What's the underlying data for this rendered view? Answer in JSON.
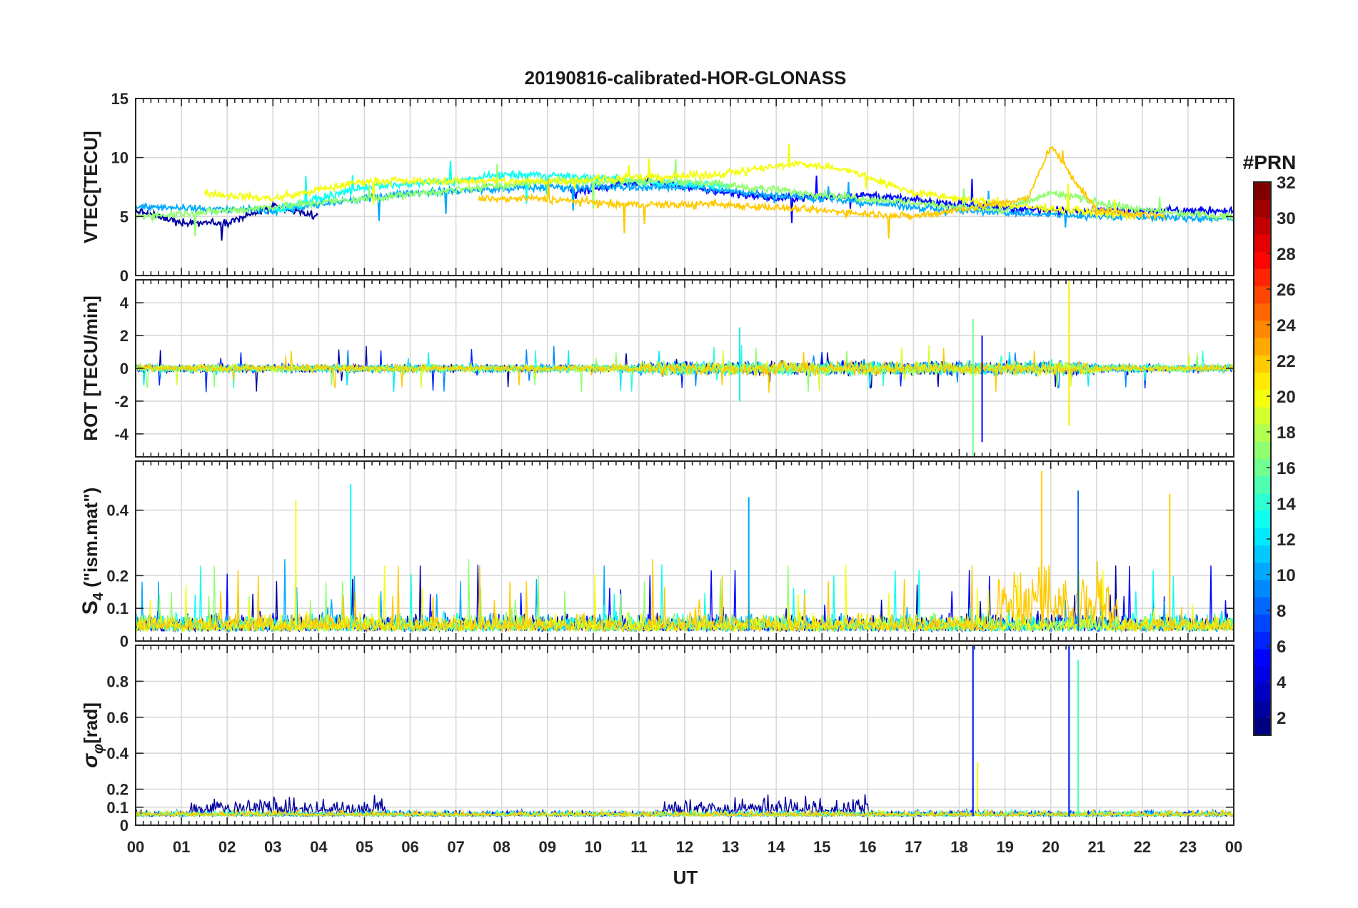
{
  "chart_data": {
    "type": "line",
    "title": "20190816-calibrated-HOR-GLONASS",
    "xlabel": "UT",
    "x_tick_labels": [
      "00",
      "01",
      "02",
      "03",
      "04",
      "05",
      "06",
      "07",
      "08",
      "09",
      "10",
      "11",
      "12",
      "13",
      "14",
      "15",
      "16",
      "17",
      "18",
      "19",
      "20",
      "21",
      "22",
      "23",
      "00"
    ],
    "xlim_hours": [
      0,
      24
    ],
    "grid": true,
    "colorbar": {
      "label": "#PRN",
      "range": [
        1,
        32
      ],
      "ticks": [
        "2",
        "4",
        "6",
        "8",
        "10",
        "12",
        "14",
        "16",
        "18",
        "20",
        "22",
        "24",
        "26",
        "28",
        "30",
        "32"
      ],
      "colormap": "jet",
      "placement": "right"
    },
    "panels": [
      {
        "name": "vtec",
        "ylabel": "VTEC[TECU]",
        "ylim": [
          0,
          15
        ],
        "yticks": [
          0,
          5,
          10,
          15
        ],
        "ytick_labels": [
          "0",
          "5",
          "10",
          "15"
        ],
        "series_summary": [
          {
            "prn": 2,
            "x_hours": [
              0.0,
              1.0,
              2.0,
              3.0,
              4.0
            ],
            "y": [
              5.5,
              4.5,
              4.5,
              5.8,
              5.0
            ]
          },
          {
            "prn": 5,
            "x_hours": [
              9.5,
              11.0,
              12.0,
              13.0,
              14.0,
              16.0,
              18.0,
              20.0,
              22.0,
              24.0
            ],
            "y": [
              7.0,
              8.0,
              7.5,
              7.0,
              6.5,
              6.8,
              6.0,
              5.5,
              5.5,
              5.5
            ]
          },
          {
            "prn": 10,
            "x_hours": [
              0.0,
              3.0,
              6.0,
              9.0,
              12.0,
              15.0,
              18.0,
              21.0,
              24.0
            ],
            "y": [
              5.8,
              5.5,
              7.0,
              7.5,
              7.5,
              6.5,
              5.5,
              5.0,
              4.8
            ]
          },
          {
            "prn": 13,
            "x_hours": [
              3.0,
              5.0,
              7.0,
              8.0,
              9.0,
              11.0,
              13.0
            ],
            "y": [
              5.5,
              7.5,
              8.0,
              8.5,
              8.5,
              8.0,
              7.5
            ]
          },
          {
            "prn": 17,
            "x_hours": [
              0.0,
              2.0,
              5.0,
              9.0,
              12.0,
              16.0,
              19.0,
              20.0,
              22.0,
              24.0
            ],
            "y": [
              5.0,
              5.5,
              6.5,
              8.0,
              8.0,
              6.5,
              5.5,
              7.0,
              5.5,
              5.0
            ]
          },
          {
            "prn": 20,
            "x_hours": [
              1.5,
              3.0,
              5.0,
              9.0,
              12.5,
              14.5,
              15.5,
              17.0,
              19.0,
              22.0
            ],
            "y": [
              7.0,
              6.5,
              8.0,
              8.0,
              8.5,
              9.5,
              9.0,
              7.0,
              6.0,
              5.0
            ]
          },
          {
            "prn": 22,
            "x_hours": [
              7.5,
              9.0,
              10.5,
              13.0,
              17.0,
              19.5,
              20.0,
              21.0,
              22.5
            ],
            "y": [
              6.5,
              6.5,
              6.0,
              6.0,
              5.0,
              6.5,
              11.0,
              5.5,
              5.0
            ]
          }
        ]
      },
      {
        "name": "rot",
        "ylabel": "ROT [TECU/min]",
        "ylim": [
          -5.4,
          5.4
        ],
        "yticks": [
          -4,
          -2,
          0,
          2,
          4
        ],
        "ytick_labels": [
          "-4",
          "-2",
          "0",
          "2",
          "4"
        ],
        "spikes": [
          {
            "x_hours": 18.3,
            "min": -5.4,
            "max": 3.0
          },
          {
            "x_hours": 18.5,
            "min": -4.5,
            "max": 2.0
          },
          {
            "x_hours": 20.4,
            "min": -3.5,
            "max": 5.3
          },
          {
            "x_hours": 13.2,
            "min": -2.0,
            "max": 2.5
          }
        ]
      },
      {
        "name": "s4",
        "ylabel": "S4 (\"ism.mat\")",
        "ylabel_main": "S",
        "ylabel_sub": "4",
        "ylabel_rest": " (\"ism.mat\")",
        "ylim": [
          0,
          0.55
        ],
        "yticks": [
          0,
          0.1,
          0.2,
          0.4
        ],
        "ytick_labels": [
          "0",
          "0.1",
          "0.2",
          "0.4"
        ],
        "peaks": [
          {
            "x_hours": 4.7,
            "value": 0.48
          },
          {
            "x_hours": 3.5,
            "value": 0.43
          },
          {
            "x_hours": 19.8,
            "value": 0.52
          },
          {
            "x_hours": 20.6,
            "value": 0.46
          },
          {
            "x_hours": 13.4,
            "value": 0.44
          },
          {
            "x_hours": 22.6,
            "value": 0.45
          }
        ]
      },
      {
        "name": "sigma_phi",
        "ylabel": "σφ[rad]",
        "ylabel_main": "σ",
        "ylabel_sub": "φ",
        "ylabel_rest": "[rad]",
        "ylim": [
          0,
          1.0
        ],
        "yticks": [
          0,
          0.1,
          0.2,
          0.4,
          0.6,
          0.8
        ],
        "ytick_labels": [
          "0",
          "0.1",
          "0.2",
          "0.4",
          "0.6",
          "0.8"
        ],
        "peaks": [
          {
            "x_hours": 18.3,
            "value": 1.0
          },
          {
            "x_hours": 20.4,
            "value": 1.0
          },
          {
            "x_hours": 20.6,
            "value": 0.92
          },
          {
            "x_hours": 18.4,
            "value": 0.35
          }
        ]
      }
    ]
  }
}
